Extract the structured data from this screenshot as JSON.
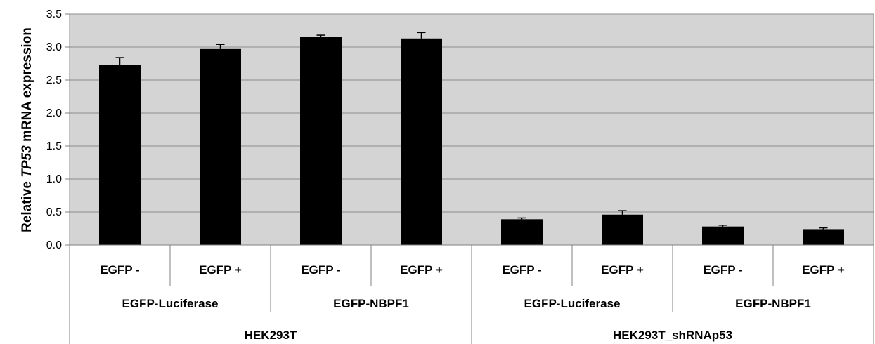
{
  "chart_data": {
    "type": "bar",
    "ylabel_parts": [
      "Relative ",
      "TP53",
      " mRNA expression"
    ],
    "ylim": [
      0,
      3.5
    ],
    "yticks": [
      "0.0",
      "0.5",
      "1.0",
      "1.5",
      "2.0",
      "2.5",
      "3.0",
      "3.5"
    ],
    "yticks_values": [
      0,
      0.5,
      1.0,
      1.5,
      2.0,
      2.5,
      3.0,
      3.5
    ],
    "grid": true,
    "categories": [
      "EGFP -",
      "EGFP +",
      "EGFP -",
      "EGFP +",
      "EGFP -",
      "EGFP +",
      "EGFP -",
      "EGFP +"
    ],
    "values": [
      2.73,
      2.97,
      3.15,
      3.13,
      0.39,
      0.46,
      0.28,
      0.24
    ],
    "errors": [
      0.11,
      0.07,
      0.03,
      0.09,
      0.02,
      0.06,
      0.02,
      0.02
    ],
    "constructs": [
      "EGFP-Luciferase",
      "EGFP-NBPF1",
      "EGFP-Luciferase",
      "EGFP-NBPF1"
    ],
    "cell_lines": [
      "HEK293T",
      "HEK293T_shRNAp53"
    ],
    "colors": {
      "bar": "#000000",
      "plot_bg": "#d4d4d4",
      "grid": "#8c8c8c",
      "axis": "#808080"
    }
  }
}
